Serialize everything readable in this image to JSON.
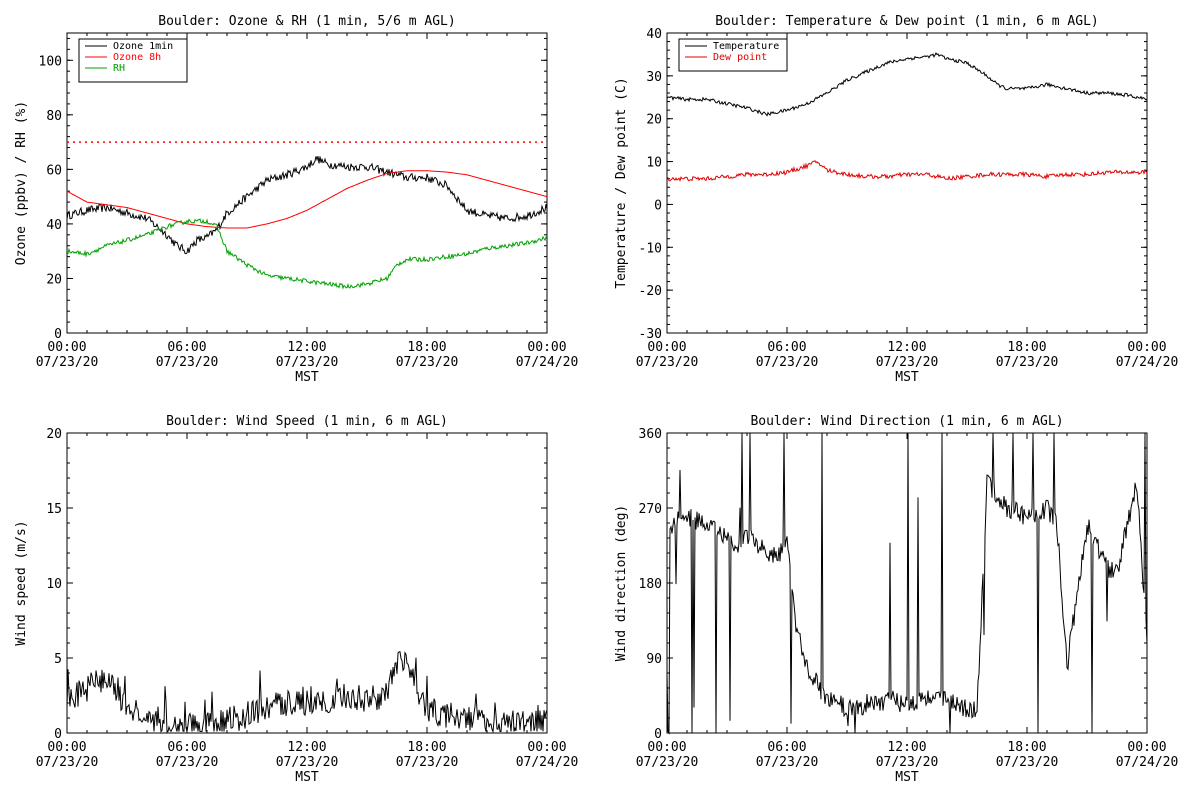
{
  "chart_data": [
    {
      "id": "ozone_rh",
      "type": "line",
      "title": "Boulder: Ozone & RH (1 min, 5/6 m AGL)",
      "xlabel": "MST",
      "ylabel": "Ozone (ppbv) / RH (%)",
      "ylim": [
        0,
        110
      ],
      "yticks": [
        0,
        20,
        40,
        60,
        80,
        100
      ],
      "xlim": [
        0,
        24
      ],
      "xticks": [
        {
          "time": "00:00",
          "date": "07/23/20"
        },
        {
          "time": "06:00",
          "date": "07/23/20"
        },
        {
          "time": "12:00",
          "date": "07/23/20"
        },
        {
          "time": "18:00",
          "date": "07/23/20"
        },
        {
          "time": "00:00",
          "date": "07/24/20"
        }
      ],
      "reference_line": {
        "y": 70,
        "color": "#ff0000",
        "style": "dotted"
      },
      "legend": "top-left",
      "series": [
        {
          "name": "Ozone 1min",
          "color": "#000000",
          "noise": 1.5,
          "x": [
            0,
            1,
            2,
            3,
            4,
            5,
            5.5,
            6,
            6.5,
            7,
            7.5,
            8,
            9,
            10,
            11,
            12,
            12.5,
            13,
            14,
            15,
            16,
            17,
            18,
            19,
            20,
            21,
            22,
            23,
            24
          ],
          "y": [
            43,
            45,
            46,
            44,
            42,
            36,
            32,
            30,
            34,
            35,
            38,
            44,
            50,
            56,
            58,
            61,
            64,
            62,
            61,
            61,
            59,
            57,
            57,
            54,
            45,
            43,
            42,
            43,
            46
          ]
        },
        {
          "name": "Ozone 8h",
          "color": "#ff0000",
          "noise": 0,
          "x": [
            0,
            1,
            2,
            3,
            4,
            5,
            6,
            7,
            8,
            9,
            10,
            11,
            12,
            13,
            14,
            15,
            16,
            17,
            18,
            19,
            20,
            21,
            22,
            23,
            24
          ],
          "y": [
            52,
            48,
            47,
            46,
            44,
            42,
            40,
            39,
            38.5,
            38.5,
            40,
            42,
            45,
            49,
            53,
            56,
            58.5,
            59.5,
            59.5,
            59,
            58,
            56,
            54,
            52,
            50
          ]
        },
        {
          "name": "RH",
          "color": "#00a000",
          "noise": 0.8,
          "x": [
            0,
            1,
            2,
            3,
            4,
            5,
            6,
            7,
            7.5,
            8,
            9,
            10,
            11,
            12,
            13,
            14,
            15,
            16,
            16.5,
            17,
            18,
            19,
            20,
            21,
            22,
            23,
            24
          ],
          "y": [
            30,
            29,
            32,
            34,
            36,
            39,
            41,
            41,
            39,
            30,
            25,
            21,
            20,
            19,
            18,
            17,
            18,
            20,
            25,
            27,
            27,
            28,
            29,
            31,
            32,
            33,
            35
          ]
        }
      ]
    },
    {
      "id": "temp_dew",
      "type": "line",
      "title": "Boulder: Temperature & Dew point (1 min, 6 m AGL)",
      "xlabel": "MST",
      "ylabel": "Temperature / Dew point (C)",
      "ylim": [
        -30,
        40
      ],
      "yticks": [
        -30,
        -20,
        -10,
        0,
        10,
        20,
        30,
        40
      ],
      "xlim": [
        0,
        24
      ],
      "xticks": [
        {
          "time": "00:00",
          "date": "07/23/20"
        },
        {
          "time": "06:00",
          "date": "07/23/20"
        },
        {
          "time": "12:00",
          "date": "07/23/20"
        },
        {
          "time": "18:00",
          "date": "07/23/20"
        },
        {
          "time": "00:00",
          "date": "07/24/20"
        }
      ],
      "legend": "top-left",
      "series": [
        {
          "name": "Temperature",
          "color": "#000000",
          "noise": 0.4,
          "x": [
            0,
            1,
            2,
            3,
            4,
            5,
            5.5,
            6,
            7,
            8,
            9,
            10,
            11,
            12,
            13,
            13.5,
            14,
            15,
            16,
            16.5,
            17,
            18,
            19,
            20,
            21,
            22,
            23,
            24
          ],
          "y": [
            25,
            24.5,
            24.5,
            23.5,
            22.5,
            21,
            21.5,
            22,
            23.5,
            26,
            29,
            31,
            33,
            34,
            34.5,
            35,
            34,
            33,
            30,
            28,
            27,
            27,
            28,
            27,
            26,
            26,
            25.5,
            24.5
          ]
        },
        {
          "name": "Dew point",
          "color": "#e00000",
          "noise": 0.5,
          "x": [
            0,
            1,
            2,
            3,
            4,
            5,
            6,
            7,
            7.5,
            8,
            9,
            10,
            11,
            12,
            13,
            14,
            15,
            16,
            17,
            18,
            19,
            20,
            21,
            22,
            23,
            24
          ],
          "y": [
            6,
            6,
            6,
            6.5,
            7,
            7,
            7.5,
            9,
            10,
            8,
            7,
            6.5,
            6.5,
            7,
            7,
            6,
            6.5,
            7,
            7,
            7,
            6.5,
            7,
            7,
            7.5,
            7.5,
            7.5
          ]
        }
      ]
    },
    {
      "id": "wind_speed",
      "type": "line",
      "title": "Boulder: Wind Speed (1 min, 6 m AGL)",
      "xlabel": "MST",
      "ylabel": "Wind speed (m/s)",
      "ylim": [
        0,
        20
      ],
      "yticks": [
        0,
        5,
        10,
        15,
        20
      ],
      "xlim": [
        0,
        24
      ],
      "xticks": [
        {
          "time": "00:00",
          "date": "07/23/20"
        },
        {
          "time": "06:00",
          "date": "07/23/20"
        },
        {
          "time": "12:00",
          "date": "07/23/20"
        },
        {
          "time": "18:00",
          "date": "07/23/20"
        },
        {
          "time": "00:00",
          "date": "07/24/20"
        }
      ],
      "series": [
        {
          "name": "",
          "color": "#000000",
          "noise": 0.9,
          "x": [
            0,
            1,
            1.5,
            2,
            2.5,
            3,
            3.5,
            4,
            5,
            6,
            7,
            8,
            9,
            10,
            11,
            12,
            13,
            14,
            15,
            16,
            16.5,
            17,
            17.5,
            18,
            19,
            20,
            21,
            22,
            23,
            24
          ],
          "y": [
            2,
            3,
            3.5,
            3.5,
            2.5,
            2,
            1,
            0.6,
            0.5,
            0.5,
            0.6,
            0.8,
            1.2,
            1.7,
            2,
            2,
            2.2,
            2.5,
            2.2,
            2.6,
            4.5,
            4.5,
            3,
            1.5,
            1.2,
            1,
            0.8,
            0.6,
            0.6,
            0.8
          ]
        }
      ]
    },
    {
      "id": "wind_dir",
      "type": "line",
      "title": "Boulder: Wind Direction (1 min, 6 m AGL)",
      "xlabel": "MST",
      "ylabel": "Wind direction (deg)",
      "ylim": [
        0,
        360
      ],
      "yticks": [
        0,
        90,
        180,
        270,
        360
      ],
      "xlim": [
        0,
        24
      ],
      "xticks": [
        {
          "time": "00:00",
          "date": "07/23/20"
        },
        {
          "time": "06:00",
          "date": "07/23/20"
        },
        {
          "time": "12:00",
          "date": "07/23/20"
        },
        {
          "time": "18:00",
          "date": "07/23/20"
        },
        {
          "time": "00:00",
          "date": "07/24/20"
        }
      ],
      "series": [
        {
          "name": "",
          "color": "#000000",
          "noise": 12,
          "x": [
            0,
            0.5,
            1,
            1.5,
            2,
            2.5,
            3,
            3.5,
            4,
            4.5,
            5,
            5.5,
            6,
            6.5,
            7,
            7.5,
            8,
            9,
            10,
            11,
            12,
            13,
            14,
            15,
            15.5,
            16,
            17,
            18,
            19,
            19.5,
            20,
            21,
            22,
            22.5,
            23,
            23.5,
            24
          ],
          "y": [
            240,
            255,
            260,
            255,
            250,
            245,
            230,
            220,
            240,
            225,
            215,
            210,
            230,
            120,
            80,
            60,
            40,
            30,
            35,
            40,
            35,
            45,
            40,
            30,
            25,
            300,
            270,
            260,
            270,
            250,
            80,
            250,
            200,
            190,
            250,
            300,
            110
          ]
        }
      ]
    }
  ]
}
